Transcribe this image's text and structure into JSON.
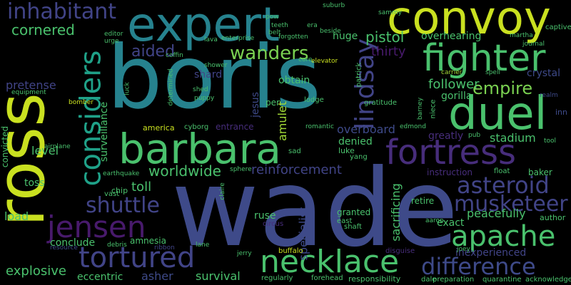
{
  "colors": {
    "background": "#000000",
    "yellow": "#C9E020",
    "lime": "#A2DA37",
    "green": "#4AC16D",
    "teal": "#26828E",
    "aqua": "#1FA188",
    "blue": "#3E4A89",
    "indigo": "#414487",
    "purple": "#472D7B",
    "violet": "#481A6C",
    "lightgreen": "#7AD151"
  },
  "words": [
    {
      "text": "boris",
      "color": "teal"
    },
    {
      "text": "wade",
      "color": "blue"
    },
    {
      "text": "ross",
      "color": "yellow"
    },
    {
      "text": "expert",
      "color": "teal"
    },
    {
      "text": "convoy",
      "color": "yellow"
    },
    {
      "text": "barbara",
      "color": "green"
    },
    {
      "text": "duel",
      "color": "green"
    },
    {
      "text": "fortress",
      "color": "purple"
    },
    {
      "text": "fighter",
      "color": "green"
    },
    {
      "text": "considers",
      "color": "aqua"
    },
    {
      "text": "necklace",
      "color": "green"
    },
    {
      "text": "tortured",
      "color": "indigo"
    },
    {
      "text": "jensen",
      "color": "violet"
    },
    {
      "text": "apache",
      "color": "green"
    },
    {
      "text": "difference",
      "color": "blue"
    },
    {
      "text": "asteroid",
      "color": "indigo"
    },
    {
      "text": "musketeer",
      "color": "indigo"
    },
    {
      "text": "lindsay",
      "color": "indigo"
    },
    {
      "text": "inhabitant",
      "color": "indigo"
    },
    {
      "text": "wanders",
      "color": "lightgreen"
    },
    {
      "text": "shuttle",
      "color": "indigo"
    },
    {
      "text": "empire",
      "color": "lightgreen"
    },
    {
      "text": "cornered",
      "color": "green"
    },
    {
      "text": "aided",
      "color": "indigo"
    },
    {
      "text": "worldwide",
      "color": "green"
    },
    {
      "text": "reinforcement",
      "color": "indigo"
    },
    {
      "text": "pistol",
      "color": "green"
    },
    {
      "text": "thirty",
      "color": "violet"
    },
    {
      "text": "overhearing",
      "color": "green"
    },
    {
      "text": "follower",
      "color": "green"
    },
    {
      "text": "gorilla",
      "color": "green"
    },
    {
      "text": "surveillance",
      "color": "green"
    },
    {
      "text": "explosive",
      "color": "green"
    },
    {
      "text": "eccentric",
      "color": "green"
    },
    {
      "text": "asher",
      "color": "blue"
    },
    {
      "text": "survival",
      "color": "green"
    },
    {
      "text": "toll",
      "color": "green"
    },
    {
      "text": "stadium",
      "color": "green"
    },
    {
      "text": "inexperienced",
      "color": "indigo"
    },
    {
      "text": "peacefully",
      "color": "green"
    },
    {
      "text": "amulet",
      "color": "lime"
    },
    {
      "text": "shard",
      "color": "indigo"
    },
    {
      "text": "pretense",
      "color": "indigo"
    },
    {
      "text": "level",
      "color": "green"
    },
    {
      "text": "overboard",
      "color": "blue"
    },
    {
      "text": "denied",
      "color": "green"
    },
    {
      "text": "huge",
      "color": "green"
    },
    {
      "text": "load",
      "color": "green"
    },
    {
      "text": "crystal",
      "color": "blue"
    },
    {
      "text": "specialist",
      "color": "blue"
    },
    {
      "text": "sacrificing",
      "color": "green"
    },
    {
      "text": "responsibility",
      "color": "green"
    },
    {
      "text": "conclude",
      "color": "green"
    },
    {
      "text": "amnesia",
      "color": "green"
    },
    {
      "text": "ruse",
      "color": "green"
    },
    {
      "text": "exact",
      "color": "green"
    },
    {
      "text": "granted",
      "color": "green"
    },
    {
      "text": "greatly",
      "color": "purple"
    },
    {
      "text": "convicted",
      "color": "green"
    },
    {
      "text": "toss",
      "color": "green"
    },
    {
      "text": "jesus",
      "color": "blue"
    },
    {
      "text": "obtain",
      "color": "green"
    },
    {
      "text": "instruction",
      "color": "purple"
    },
    {
      "text": "retire",
      "color": "green"
    },
    {
      "text": "author",
      "color": "green"
    },
    {
      "text": "baker",
      "color": "green"
    },
    {
      "text": "america",
      "color": "yellow"
    },
    {
      "text": "cyborg",
      "color": "green"
    },
    {
      "text": "entrance",
      "color": "purple"
    },
    {
      "text": "luke",
      "color": "green"
    },
    {
      "text": "chip",
      "color": "green"
    },
    {
      "text": "vast",
      "color": "green"
    },
    {
      "text": "buffalo",
      "color": "yellow"
    },
    {
      "text": "regularly",
      "color": "green"
    },
    {
      "text": "forehead",
      "color": "green"
    },
    {
      "text": "preparation",
      "color": "green"
    },
    {
      "text": "quarantine",
      "color": "green"
    },
    {
      "text": "acknowledge",
      "color": "green"
    },
    {
      "text": "disguise",
      "color": "purple"
    },
    {
      "text": "lodge",
      "color": "green"
    },
    {
      "text": "gratitude",
      "color": "green"
    },
    {
      "text": "shaft",
      "color": "green"
    },
    {
      "text": "east",
      "color": "green"
    },
    {
      "text": "dale",
      "color": "green"
    },
    {
      "text": "debris",
      "color": "green"
    },
    {
      "text": "ribbon",
      "color": "indigo"
    },
    {
      "text": "lane",
      "color": "green"
    },
    {
      "text": "jerry",
      "color": "green"
    },
    {
      "text": "circus",
      "color": "purple"
    },
    {
      "text": "yang",
      "color": "green"
    },
    {
      "text": "sad",
      "color": "green"
    },
    {
      "text": "float",
      "color": "green"
    },
    {
      "text": "pub",
      "color": "green"
    },
    {
      "text": "tool",
      "color": "green"
    },
    {
      "text": "edmond",
      "color": "green"
    },
    {
      "text": "barney",
      "color": "green"
    },
    {
      "text": "niece",
      "color": "green"
    },
    {
      "text": "inn",
      "color": "blue"
    },
    {
      "text": "realm",
      "color": "blue"
    },
    {
      "text": "spell",
      "color": "green"
    },
    {
      "text": "carrier",
      "color": "lime"
    },
    {
      "text": "journal",
      "color": "green"
    },
    {
      "text": "captive",
      "color": "green"
    },
    {
      "text": "martha",
      "color": "green"
    },
    {
      "text": "sammy",
      "color": "green"
    },
    {
      "text": "suburb",
      "color": "green"
    },
    {
      "text": "pow",
      "color": "green"
    },
    {
      "text": "teeth",
      "color": "green"
    },
    {
      "text": "era",
      "color": "green"
    },
    {
      "text": "beside",
      "color": "green"
    },
    {
      "text": "forgotten",
      "color": "green"
    },
    {
      "text": "enterprise",
      "color": "green"
    },
    {
      "text": "elevator",
      "color": "yellow"
    },
    {
      "text": "coffin",
      "color": "green"
    },
    {
      "text": "lava",
      "color": "green"
    },
    {
      "text": "urge",
      "color": "green"
    },
    {
      "text": "editor",
      "color": "green"
    },
    {
      "text": "bomber",
      "color": "yellow"
    },
    {
      "text": "equipment",
      "color": "green"
    },
    {
      "text": "airplane",
      "color": "green"
    },
    {
      "text": "earthquake",
      "color": "green"
    },
    {
      "text": "sphere",
      "color": "green"
    },
    {
      "text": "shower",
      "color": "green"
    },
    {
      "text": "puppy",
      "color": "green"
    },
    {
      "text": "shed",
      "color": "green"
    },
    {
      "text": "luck",
      "color": "green"
    },
    {
      "text": "determined",
      "color": "green"
    },
    {
      "text": "romantic",
      "color": "green"
    },
    {
      "text": "patrick",
      "color": "green"
    },
    {
      "text": "belt",
      "color": "green"
    },
    {
      "text": "core",
      "color": "green"
    },
    {
      "text": "per",
      "color": "green"
    },
    {
      "text": "claire",
      "color": "green"
    },
    {
      "text": "resource",
      "color": "blue"
    },
    {
      "text": "aaron",
      "color": "green"
    },
    {
      "text": "joey",
      "color": "green"
    }
  ]
}
